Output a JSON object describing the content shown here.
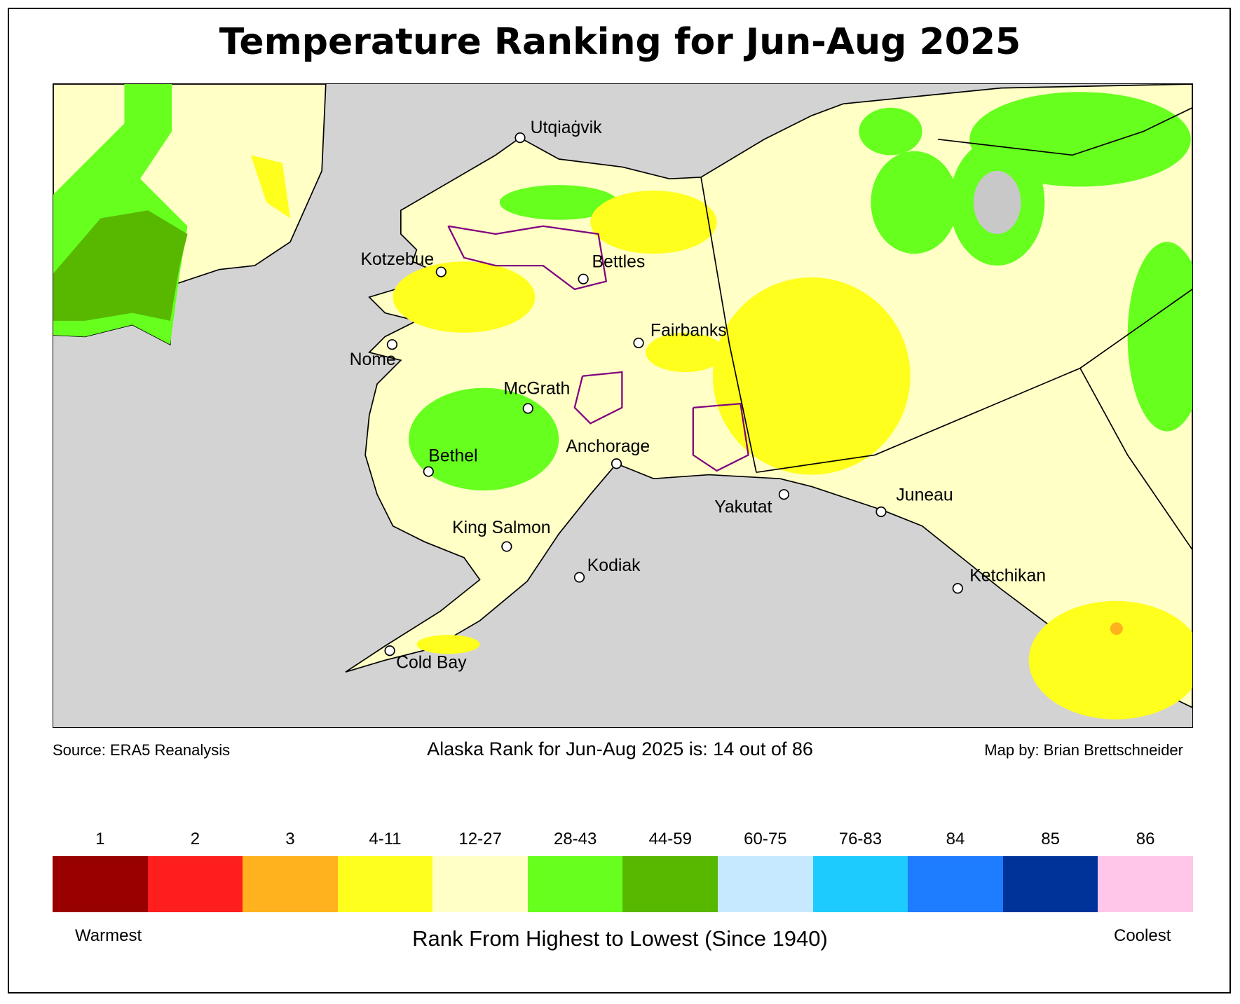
{
  "title": "Temperature Ranking for Jun-Aug 2025",
  "footer": {
    "source": "Source: ERA5 Reanalysis",
    "summary": "Alaska Rank for Jun-Aug 2025 is: 14 out of 86",
    "credit": "Map by: Brian Brettschneider"
  },
  "map": {
    "ocean_color": "#d3d3d3",
    "cities": [
      {
        "name": "Utqiaġvik"
      },
      {
        "name": "Kotzebue"
      },
      {
        "name": "Bettles"
      },
      {
        "name": "Nome"
      },
      {
        "name": "Fairbanks"
      },
      {
        "name": "McGrath"
      },
      {
        "name": "Bethel"
      },
      {
        "name": "Anchorage"
      },
      {
        "name": "Yakutat"
      },
      {
        "name": "Juneau"
      },
      {
        "name": "King Salmon"
      },
      {
        "name": "Kodiak"
      },
      {
        "name": "Ketchikan"
      },
      {
        "name": "Cold Bay"
      }
    ]
  },
  "legend": {
    "items": [
      {
        "label": "1",
        "color": "#990000"
      },
      {
        "label": "2",
        "color": "#ff1e1e"
      },
      {
        "label": "3",
        "color": "#ffb21e"
      },
      {
        "label": "4-11",
        "color": "#ffff1e"
      },
      {
        "label": "12-27",
        "color": "#ffffc6"
      },
      {
        "label": "28-43",
        "color": "#66ff1e"
      },
      {
        "label": "44-59",
        "color": "#58b800"
      },
      {
        "label": "60-75",
        "color": "#c6e9ff"
      },
      {
        "label": "76-83",
        "color": "#1ecbff"
      },
      {
        "label": "84",
        "color": "#1e7cff"
      },
      {
        "label": "85",
        "color": "#003399"
      },
      {
        "label": "86",
        "color": "#ffc6e9"
      }
    ],
    "warmest": "Warmest",
    "coolest": "Coolest",
    "axis_label": "Rank From Highest to Lowest (Since 1940)"
  }
}
